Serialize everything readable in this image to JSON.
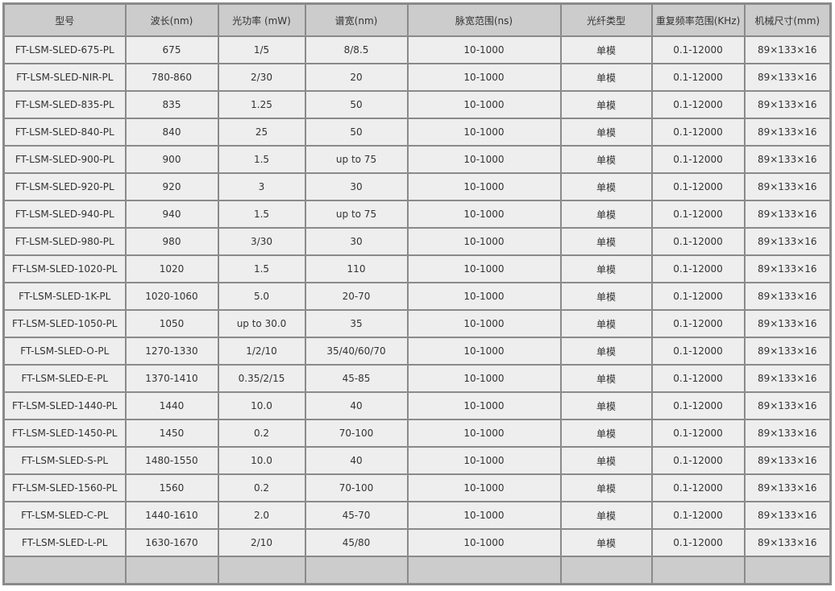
{
  "table": {
    "headers": [
      "型号",
      "波长(nm)",
      "光功率 (mW)",
      "谱宽(nm)",
      "脉宽范围(ns)",
      "光纤类型",
      "重复频率范围(KHz)",
      "机械尺寸(mm)"
    ],
    "rows": [
      [
        "FT-LSM-SLED-675-PL",
        "675",
        "1/5",
        "8/8.5",
        "10-1000",
        "单模",
        "0.1-12000",
        "89×133×16"
      ],
      [
        "FT-LSM-SLED-NIR-PL",
        "780-860",
        "2/30",
        "20",
        "10-1000",
        "单模",
        "0.1-12000",
        "89×133×16"
      ],
      [
        "FT-LSM-SLED-835-PL",
        "835",
        "1.25",
        "50",
        "10-1000",
        "单模",
        "0.1-12000",
        "89×133×16"
      ],
      [
        "FT-LSM-SLED-840-PL",
        "840",
        "25",
        "50",
        "10-1000",
        "单模",
        "0.1-12000",
        "89×133×16"
      ],
      [
        "FT-LSM-SLED-900-PL",
        "900",
        "1.5",
        "up to 75",
        "10-1000",
        "单模",
        "0.1-12000",
        "89×133×16"
      ],
      [
        "FT-LSM-SLED-920-PL",
        "920",
        "3",
        "30",
        "10-1000",
        "单模",
        "0.1-12000",
        "89×133×16"
      ],
      [
        "FT-LSM-SLED-940-PL",
        "940",
        "1.5",
        "up to 75",
        "10-1000",
        "单模",
        "0.1-12000",
        "89×133×16"
      ],
      [
        "FT-LSM-SLED-980-PL",
        "980",
        "3/30",
        "30",
        "10-1000",
        "单模",
        "0.1-12000",
        "89×133×16"
      ],
      [
        "FT-LSM-SLED-1020-PL",
        "1020",
        "1.5",
        "110",
        "10-1000",
        "单模",
        "0.1-12000",
        "89×133×16"
      ],
      [
        "FT-LSM-SLED-1K-PL",
        "1020-1060",
        "5.0",
        "20-70",
        "10-1000",
        "单模",
        "0.1-12000",
        "89×133×16"
      ],
      [
        "FT-LSM-SLED-1050-PL",
        "1050",
        "up to 30.0",
        "35",
        "10-1000",
        "单模",
        "0.1-12000",
        "89×133×16"
      ],
      [
        "FT-LSM-SLED-O-PL",
        "1270-1330",
        "1/2/10",
        "35/40/60/70",
        "10-1000",
        "单模",
        "0.1-12000",
        "89×133×16"
      ],
      [
        "FT-LSM-SLED-E-PL",
        "1370-1410",
        "0.35/2/15",
        "45-85",
        "10-1000",
        "单模",
        "0.1-12000",
        "89×133×16"
      ],
      [
        "FT-LSM-SLED-1440-PL",
        "1440",
        "10.0",
        "40",
        "10-1000",
        "单模",
        "0.1-12000",
        "89×133×16"
      ],
      [
        "FT-LSM-SLED-1450-PL",
        "1450",
        "0.2",
        "70-100",
        "10-1000",
        "单模",
        "0.1-12000",
        "89×133×16"
      ],
      [
        "FT-LSM-SLED-S-PL",
        "1480-1550",
        "10.0",
        "40",
        "10-1000",
        "单模",
        "0.1-12000",
        "89×133×16"
      ],
      [
        "FT-LSM-SLED-1560-PL",
        "1560",
        "0.2",
        "70-100",
        "10-1000",
        "单模",
        "0.1-12000",
        "89×133×16"
      ],
      [
        "FT-LSM-SLED-C-PL",
        "1440-1610",
        "2.0",
        "45-70",
        "10-1000",
        "单模",
        "0.1-12000",
        "89×133×16"
      ],
      [
        "FT-LSM-SLED-L-PL",
        "1630-1670",
        "2/10",
        "45/80",
        "10-1000",
        "单模",
        "0.1-12000",
        "89×133×16"
      ]
    ]
  },
  "colors": {
    "header_bg": "#cccccc",
    "cell_bg": "#eeeeee",
    "border": "#8a8a8a",
    "text": "#333333"
  }
}
